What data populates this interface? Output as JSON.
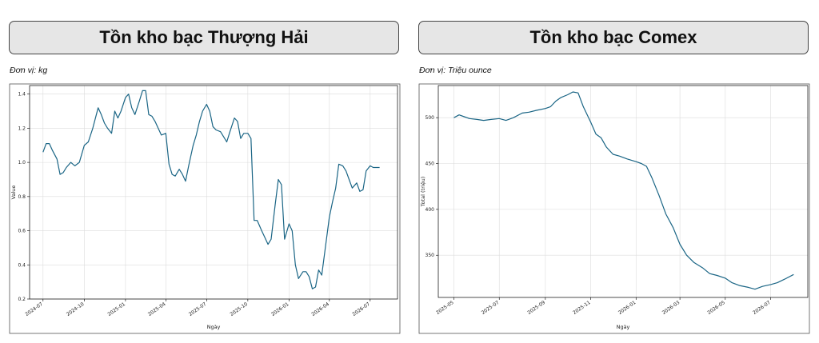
{
  "charts": [
    {
      "title": "Tồn kho bạc Thượng Hải",
      "unit_note": "Đơn vị: kg",
      "chart_data": {
        "type": "line",
        "xlabel": "Ngày",
        "ylabel": "Value",
        "ylim": [
          0.2,
          1.45
        ],
        "yticks": [
          0.2,
          0.4,
          0.6,
          0.8,
          1.0,
          1.2,
          1.4
        ],
        "ytick_labels": [
          "0.2",
          "0.4",
          "0.6",
          "0.8",
          "1.0",
          "1.2",
          "1.4"
        ],
        "xlim": [
          "2024-06-01",
          "2026-08-31"
        ],
        "xticks": [
          "2024-07-01",
          "2024-10-01",
          "2025-01-01",
          "2025-04-01",
          "2025-07-01",
          "2025-10-01",
          "2026-01-01",
          "2026-04-01",
          "2026-07-01"
        ],
        "xtick_labels": [
          "2024-07",
          "2024-10",
          "2025-01",
          "2025-04",
          "2025-07",
          "2025-10",
          "2026-01",
          "2026-04",
          "2026-07"
        ],
        "grid": true,
        "series": [
          {
            "color": "#1a6585",
            "x": [
              "2024-07-01",
              "2024-07-08",
              "2024-07-15",
              "2024-07-22",
              "2024-08-01",
              "2024-08-08",
              "2024-08-15",
              "2024-08-22",
              "2024-09-01",
              "2024-09-10",
              "2024-09-20",
              "2024-10-01",
              "2024-10-10",
              "2024-10-20",
              "2024-11-01",
              "2024-11-08",
              "2024-11-15",
              "2024-11-22",
              "2024-12-01",
              "2024-12-08",
              "2024-12-15",
              "2024-12-22",
              "2025-01-01",
              "2025-01-08",
              "2025-01-15",
              "2025-01-22",
              "2025-02-01",
              "2025-02-08",
              "2025-02-15",
              "2025-02-22",
              "2025-03-01",
              "2025-03-08",
              "2025-03-15",
              "2025-03-22",
              "2025-04-01",
              "2025-04-08",
              "2025-04-15",
              "2025-04-22",
              "2025-05-01",
              "2025-05-08",
              "2025-05-15",
              "2025-05-22",
              "2025-06-01",
              "2025-06-08",
              "2025-06-15",
              "2025-06-22",
              "2025-07-01",
              "2025-07-08",
              "2025-07-15",
              "2025-07-22",
              "2025-08-01",
              "2025-08-08",
              "2025-08-15",
              "2025-08-22",
              "2025-09-01",
              "2025-09-08",
              "2025-09-15",
              "2025-09-22",
              "2025-10-01",
              "2025-10-08",
              "2025-10-15",
              "2025-10-22",
              "2025-11-01",
              "2025-11-08",
              "2025-11-15",
              "2025-11-22",
              "2025-12-01",
              "2025-12-08",
              "2025-12-15",
              "2025-12-22",
              "2026-01-01",
              "2026-01-08",
              "2026-01-15",
              "2026-01-22",
              "2026-02-01",
              "2026-02-08",
              "2026-02-15",
              "2026-02-22",
              "2026-03-01",
              "2026-03-08",
              "2026-03-15",
              "2026-03-22",
              "2026-04-01",
              "2026-04-08",
              "2026-04-15",
              "2026-04-22",
              "2026-05-01",
              "2026-05-08",
              "2026-05-15",
              "2026-05-22",
              "2026-06-01",
              "2026-06-08",
              "2026-06-15",
              "2026-06-22",
              "2026-07-01",
              "2026-07-08",
              "2026-07-15",
              "2026-07-22"
            ],
            "y": [
              1.06,
              1.11,
              1.11,
              1.07,
              1.02,
              0.93,
              0.94,
              0.97,
              1.0,
              0.98,
              1.0,
              1.1,
              1.12,
              1.2,
              1.32,
              1.28,
              1.23,
              1.2,
              1.17,
              1.3,
              1.26,
              1.3,
              1.38,
              1.4,
              1.32,
              1.28,
              1.36,
              1.42,
              1.42,
              1.28,
              1.27,
              1.24,
              1.2,
              1.16,
              1.17,
              0.99,
              0.93,
              0.92,
              0.96,
              0.93,
              0.89,
              0.98,
              1.1,
              1.16,
              1.24,
              1.3,
              1.34,
              1.3,
              1.21,
              1.19,
              1.18,
              1.15,
              1.12,
              1.18,
              1.26,
              1.24,
              1.14,
              1.17,
              1.17,
              1.14,
              0.66,
              0.66,
              0.6,
              0.56,
              0.52,
              0.55,
              0.75,
              0.9,
              0.87,
              0.55,
              0.64,
              0.6,
              0.4,
              0.32,
              0.36,
              0.36,
              0.33,
              0.26,
              0.27,
              0.37,
              0.34,
              0.48,
              0.68,
              0.77,
              0.85,
              0.99,
              0.98,
              0.95,
              0.9,
              0.85,
              0.88,
              0.83,
              0.84,
              0.95,
              0.98,
              0.97,
              0.97,
              0.97
            ]
          }
        ]
      }
    },
    {
      "title": "Tồn kho bạc Comex",
      "unit_note": "Đơn vị: Triệu ounce",
      "chart_data": {
        "type": "line",
        "xlabel": "Ngày",
        "ylabel": "Total (triệu)",
        "ylim": [
          304,
          535
        ],
        "yticks": [
          350,
          400,
          450,
          500
        ],
        "ytick_labels": [
          "350",
          "400",
          "450",
          "500"
        ],
        "xlim": [
          "2025-04-10",
          "2026-08-20"
        ],
        "xticks": [
          "2025-05-01",
          "2025-07-01",
          "2025-09-01",
          "2025-11-01",
          "2026-01-01",
          "2026-03-01",
          "2026-05-01",
          "2026-07-01"
        ],
        "xtick_labels": [
          "2025-05",
          "2025-07",
          "2025-09",
          "2025-11",
          "2026-01",
          "2026-03",
          "2026-05",
          "2026-07"
        ],
        "grid": true,
        "series": [
          {
            "color": "#1a6585",
            "x": [
              "2025-05-01",
              "2025-05-08",
              "2025-05-15",
              "2025-05-22",
              "2025-06-01",
              "2025-06-10",
              "2025-06-20",
              "2025-07-01",
              "2025-07-10",
              "2025-07-20",
              "2025-08-01",
              "2025-08-10",
              "2025-08-20",
              "2025-09-01",
              "2025-09-08",
              "2025-09-15",
              "2025-09-22",
              "2025-10-01",
              "2025-10-08",
              "2025-10-15",
              "2025-10-22",
              "2025-11-01",
              "2025-11-08",
              "2025-11-15",
              "2025-11-22",
              "2025-12-01",
              "2025-12-10",
              "2025-12-20",
              "2026-01-01",
              "2026-01-08",
              "2026-01-15",
              "2026-01-22",
              "2026-02-01",
              "2026-02-10",
              "2026-02-20",
              "2026-03-01",
              "2026-03-10",
              "2026-03-20",
              "2026-04-01",
              "2026-04-10",
              "2026-04-20",
              "2026-05-01",
              "2026-05-10",
              "2026-05-20",
              "2026-06-01",
              "2026-06-10",
              "2026-06-20",
              "2026-07-01",
              "2026-07-10",
              "2026-07-20",
              "2026-08-01"
            ],
            "y": [
              500,
              503,
              501,
              499,
              498,
              497,
              498,
              499,
              497,
              500,
              505,
              506,
              508,
              510,
              512,
              518,
              522,
              525,
              528,
              527,
              512,
              495,
              482,
              478,
              468,
              460,
              458,
              455,
              452,
              450,
              447,
              435,
              415,
              395,
              380,
              362,
              350,
              342,
              336,
              330,
              328,
              325,
              320,
              317,
              315,
              313,
              316,
              318,
              320,
              324,
              329
            ]
          }
        ]
      }
    }
  ]
}
